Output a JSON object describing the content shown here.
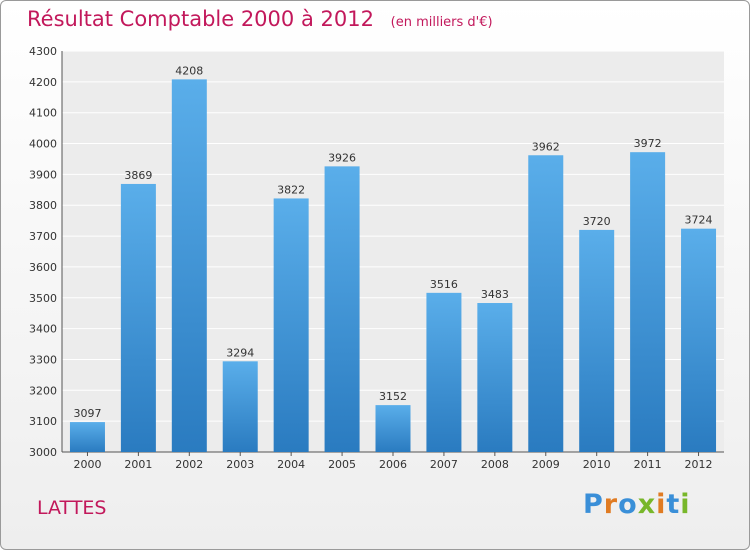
{
  "chart_data": {
    "type": "bar",
    "title": "Résultat Comptable 2000 à 2012",
    "subtitle": "(en milliers d'€)",
    "categories": [
      "2000",
      "2001",
      "2002",
      "2003",
      "2004",
      "2005",
      "2006",
      "2007",
      "2008",
      "2009",
      "2010",
      "2011",
      "2012"
    ],
    "values": [
      3097,
      3869,
      4208,
      3294,
      3822,
      3926,
      3152,
      3516,
      3483,
      3962,
      3720,
      3972,
      3724
    ],
    "ylim": [
      3000,
      4300
    ],
    "yticks": [
      3000,
      3100,
      3200,
      3300,
      3400,
      3500,
      3600,
      3700,
      3800,
      3900,
      4000,
      4100,
      4200,
      4300
    ],
    "xlabel": "",
    "ylabel": "",
    "grid": true,
    "bar_color": "#4a9edd"
  },
  "footer": {
    "city": "LATTES",
    "logo_letters": [
      {
        "ch": "P",
        "color": "#3a8fd8"
      },
      {
        "ch": "r",
        "color": "#e07b22"
      },
      {
        "ch": "o",
        "color": "#3a8fd8"
      },
      {
        "ch": "x",
        "color": "#78b72a"
      },
      {
        "ch": "i",
        "color": "#e07b22"
      },
      {
        "ch": "t",
        "color": "#3a8fd8"
      },
      {
        "ch": "i",
        "color": "#78b72a"
      }
    ]
  }
}
